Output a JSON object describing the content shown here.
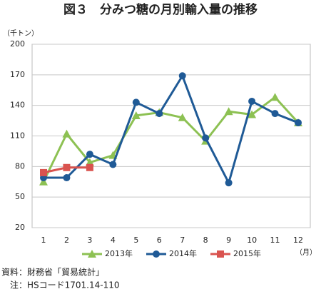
{
  "chart_data": {
    "type": "line",
    "title": "図３　分みつ糖の月別輸入量の推移",
    "y_label": "（千トン）",
    "x_label": "（月）",
    "categories": [
      "1",
      "2",
      "3",
      "4",
      "5",
      "6",
      "7",
      "8",
      "9",
      "10",
      "11",
      "12"
    ],
    "series": [
      {
        "name": "2013年",
        "color": "#8dc153",
        "marker": "triangle",
        "values": [
          65,
          112,
          84,
          91,
          130,
          133,
          128,
          105,
          134,
          131,
          148,
          123
        ]
      },
      {
        "name": "2014年",
        "color": "#1f5a96",
        "marker": "circle",
        "values": [
          69,
          69,
          92,
          82,
          143,
          132,
          169,
          108,
          64,
          144,
          132,
          123
        ]
      },
      {
        "name": "2015年",
        "color": "#d9534f",
        "marker": "square",
        "values": [
          74,
          79,
          79,
          null,
          null,
          null,
          null,
          null,
          null,
          null,
          null,
          null
        ]
      }
    ],
    "ylim": [
      20,
      200
    ],
    "yticks": [
      20,
      50,
      80,
      110,
      140,
      170,
      200
    ],
    "grid": true,
    "notes": [
      "資料：財務省「貿易統計」",
      "　注：HSコード1701.14-110"
    ]
  }
}
